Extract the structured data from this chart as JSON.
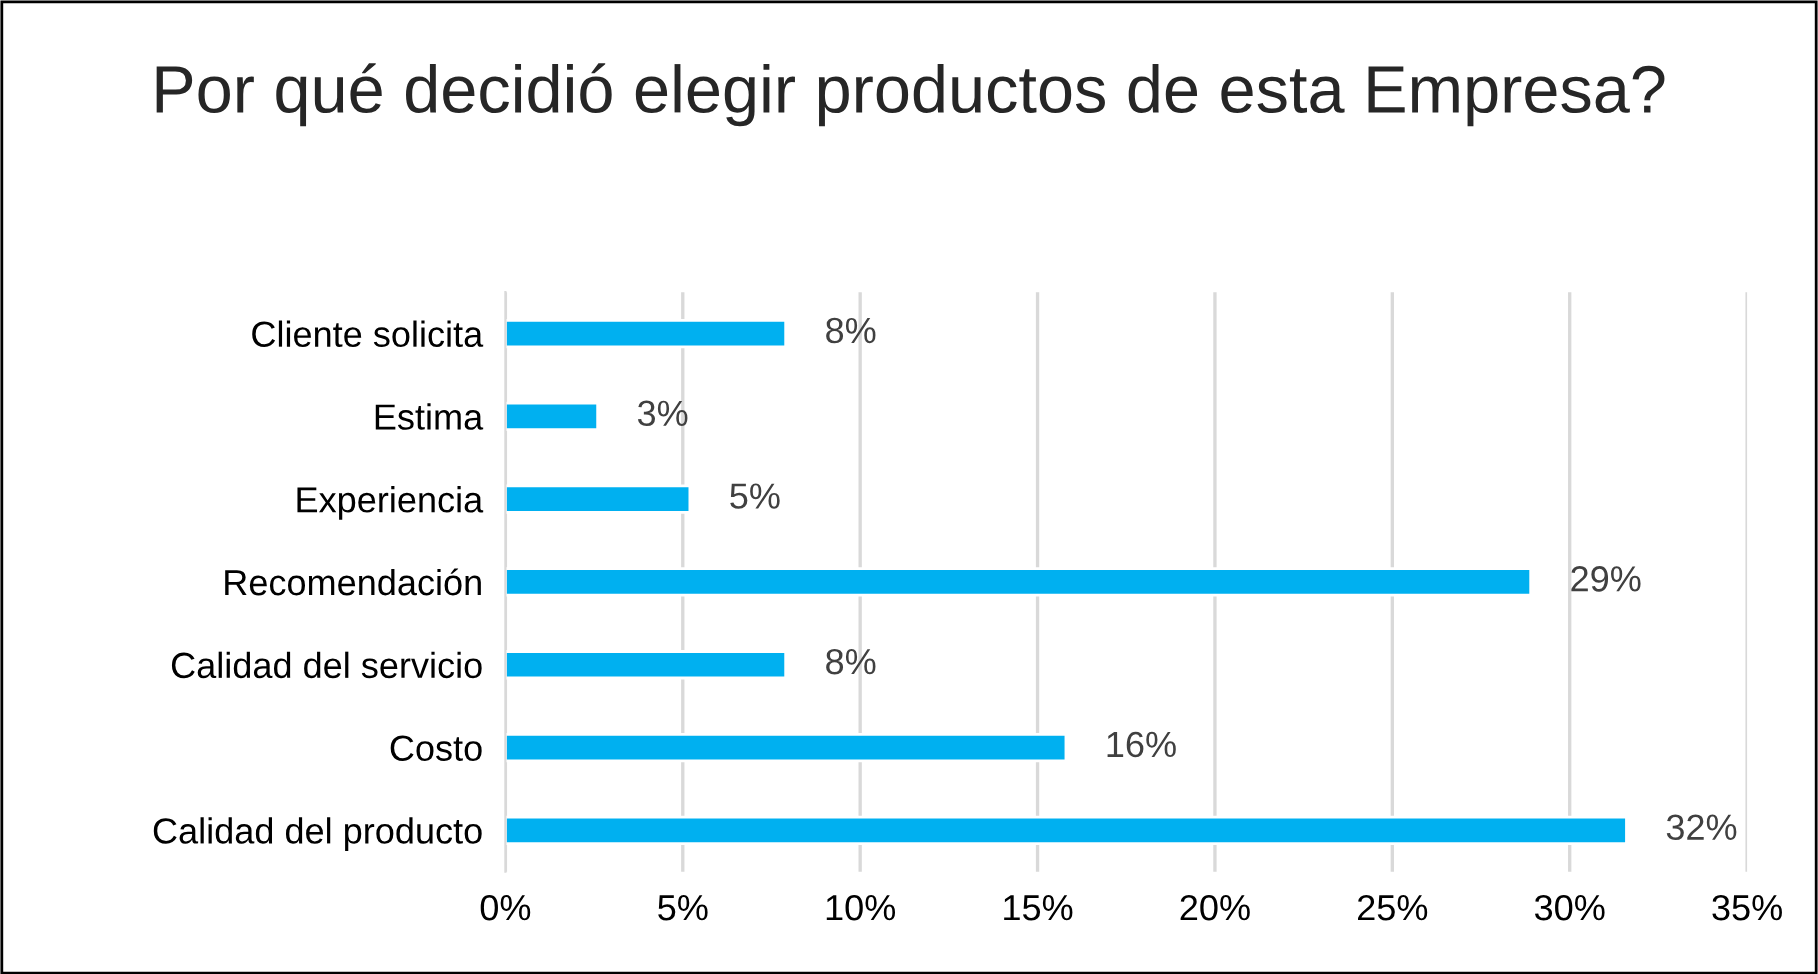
{
  "chart_data": {
    "type": "bar",
    "orientation": "horizontal",
    "title": "Por qué decidió elegir productos de esta Empresa?",
    "categories": [
      "Cliente solicita",
      "Estima",
      "Experiencia",
      "Recomendación",
      "Calidad del servicio",
      "Costo",
      "Calidad del producto"
    ],
    "values": [
      7.9,
      2.6,
      5.2,
      28.9,
      7.9,
      15.8,
      31.6
    ],
    "value_labels": [
      "8%",
      "3%",
      "5%",
      "29%",
      "8%",
      "16%",
      "32%"
    ],
    "color": "#00b0f0",
    "xlim": [
      0,
      35
    ],
    "xticks": [
      {
        "value": 0,
        "label": "0%"
      },
      {
        "value": 5,
        "label": "5%"
      },
      {
        "value": 10,
        "label": "10%"
      },
      {
        "value": 15,
        "label": "15%"
      },
      {
        "value": 20,
        "label": "20%"
      },
      {
        "value": 25,
        "label": "25%"
      },
      {
        "value": 30,
        "label": "30%"
      },
      {
        "value": 35,
        "label": "35%"
      }
    ],
    "grid": "x",
    "legend": false
  }
}
